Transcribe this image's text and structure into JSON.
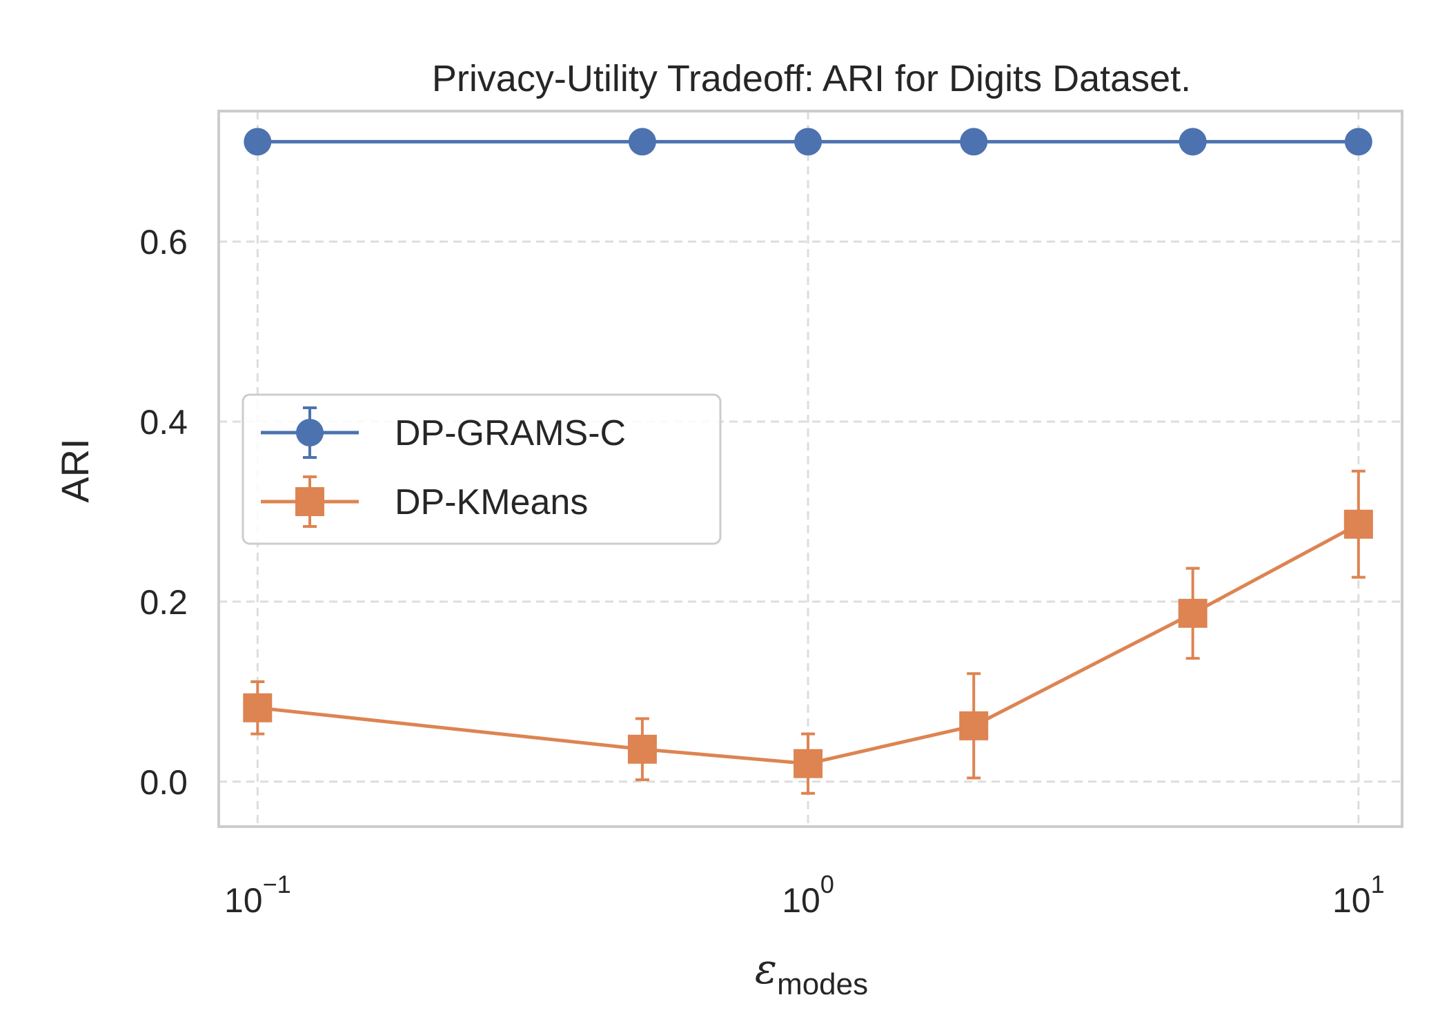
{
  "chart_data": {
    "type": "line",
    "title": "Privacy-Utility Tradeoff: ARI for Digits Dataset.",
    "xlabel": "ε",
    "xlabel_subscript": "modes",
    "ylabel": "ARI",
    "xscale": "log",
    "xlim": [
      0.085,
      12
    ],
    "ylim": [
      -0.05,
      0.745
    ],
    "x": [
      0.1,
      0.5,
      1,
      2,
      5,
      10
    ],
    "x_ticks": [
      {
        "value": 0.1,
        "base": "10",
        "exp": "−1"
      },
      {
        "value": 1,
        "base": "10",
        "exp": "0"
      },
      {
        "value": 10,
        "base": "10",
        "exp": "1"
      }
    ],
    "y_ticks": [
      {
        "value": 0.0,
        "label": "0.0"
      },
      {
        "value": 0.2,
        "label": "0.2"
      },
      {
        "value": 0.4,
        "label": "0.4"
      },
      {
        "value": 0.6,
        "label": "0.6"
      }
    ],
    "grid": true,
    "legend_position": "center-left",
    "series": [
      {
        "name": "DP-GRAMS-C",
        "marker": "circle",
        "color": "#4c72b0",
        "values": [
          0.711,
          0.711,
          0.711,
          0.711,
          0.711,
          0.711
        ],
        "errors": [
          0,
          0,
          0,
          0,
          0,
          0
        ]
      },
      {
        "name": "DP-KMeans",
        "marker": "square",
        "color": "#dd8452",
        "values": [
          0.082,
          0.036,
          0.02,
          0.062,
          0.187,
          0.286
        ],
        "errors": [
          0.029,
          0.034,
          0.033,
          0.058,
          0.05,
          0.059
        ]
      }
    ]
  }
}
